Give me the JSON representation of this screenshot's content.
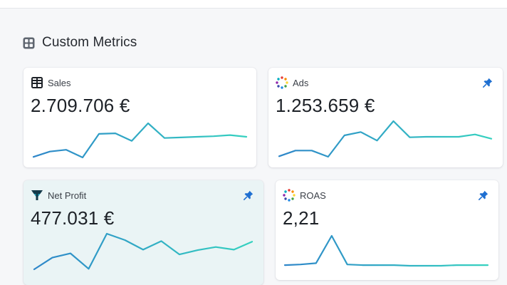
{
  "section": {
    "title": "Custom Metrics",
    "icon": "grid-icon"
  },
  "colors": {
    "line_start": "#2e86c9",
    "line_end": "#35d1c0",
    "pin": "#1f6fd1",
    "highlight_bg": "#eaf4f5"
  },
  "cards": [
    {
      "id": "sales",
      "label": "Sales",
      "value": "2.709.706 €",
      "icon": "ledger-icon",
      "pinned": false,
      "chart_data": {
        "type": "line",
        "values": [
          3,
          12,
          15,
          2,
          42,
          43,
          30,
          60,
          35,
          36,
          37,
          38,
          40,
          37
        ]
      }
    },
    {
      "id": "ads",
      "label": "Ads",
      "value": "1.253.659 €",
      "icon": "colorful-dots-icon",
      "pinned": true,
      "chart_data": {
        "type": "line",
        "values": [
          2,
          14,
          14,
          1,
          46,
          53,
          35,
          76,
          42,
          43,
          43,
          43,
          48,
          39
        ]
      }
    },
    {
      "id": "net-profit",
      "label": "Net Profit",
      "value": "477.031 €",
      "icon": "funnel-logo-icon",
      "pinned": true,
      "chart_data": {
        "type": "line",
        "values": [
          3,
          25,
          33,
          4,
          70,
          58,
          40,
          56,
          31,
          39,
          45,
          40,
          55
        ]
      }
    },
    {
      "id": "roas",
      "label": "ROAS",
      "value": "2,21",
      "icon": "colorful-dots-icon",
      "pinned": true,
      "chart_data": {
        "type": "line",
        "values": [
          2,
          3,
          5,
          48,
          3,
          2,
          2,
          2,
          1,
          1,
          1,
          2,
          2,
          2
        ]
      }
    }
  ]
}
